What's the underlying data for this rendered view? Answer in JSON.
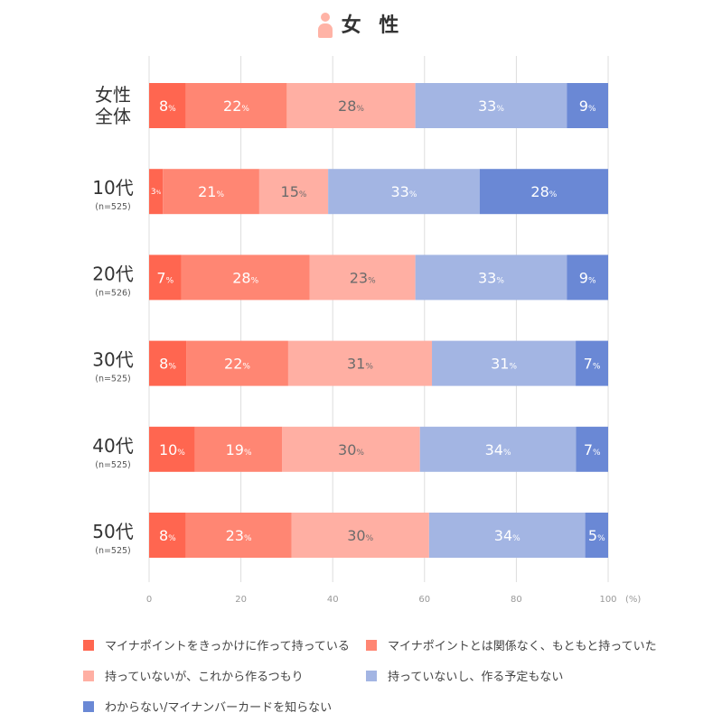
{
  "header": {
    "title": "女 性",
    "icon": "person-icon"
  },
  "chart_data": {
    "type": "bar",
    "orientation": "horizontal",
    "stacked": true,
    "categories": [
      {
        "label": "女性全体",
        "lines": [
          "女性",
          "全体"
        ],
        "n": ""
      },
      {
        "label": "10代",
        "lines": [
          "10代"
        ],
        "n": "(n=525)"
      },
      {
        "label": "20代",
        "lines": [
          "20代"
        ],
        "n": "(n=526)"
      },
      {
        "label": "30代",
        "lines": [
          "30代"
        ],
        "n": "(n=525)"
      },
      {
        "label": "40代",
        "lines": [
          "40代"
        ],
        "n": "(n=525)"
      },
      {
        "label": "50代",
        "lines": [
          "50代"
        ],
        "n": "(n=525)"
      }
    ],
    "series": [
      {
        "name": "マイナポイントをきっかけに作って持っている",
        "color": "#ff6650",
        "label_color": "#ffffff",
        "values": [
          8,
          3,
          7,
          8,
          10,
          8
        ]
      },
      {
        "name": "マイナポイントとは関係なく、もともと持っていた",
        "color": "#ff8673",
        "label_color": "#ffffff",
        "values": [
          22,
          21,
          28,
          22,
          19,
          23
        ]
      },
      {
        "name": "持っていないが、これから作るつもり",
        "color": "#ffafa3",
        "label_color": "#6b6b6b",
        "values": [
          28,
          15,
          23,
          31,
          30,
          30
        ]
      },
      {
        "name": "持っていないし、作る予定もない",
        "color": "#a3b5e3",
        "label_color": "#ffffff",
        "values": [
          33,
          33,
          33,
          31,
          34,
          34
        ]
      },
      {
        "name": "わからない/マイナンバーカードを知らない",
        "color": "#6a88d5",
        "label_color": "#ffffff",
        "values": [
          9,
          28,
          9,
          7,
          7,
          5
        ]
      }
    ],
    "value_suffix": "%",
    "xlim": [
      0,
      100
    ],
    "xticks": [
      "0",
      "20",
      "40",
      "60",
      "80",
      "100"
    ],
    "xunit": "(%)",
    "grid": true,
    "legend_position": "bottom"
  }
}
